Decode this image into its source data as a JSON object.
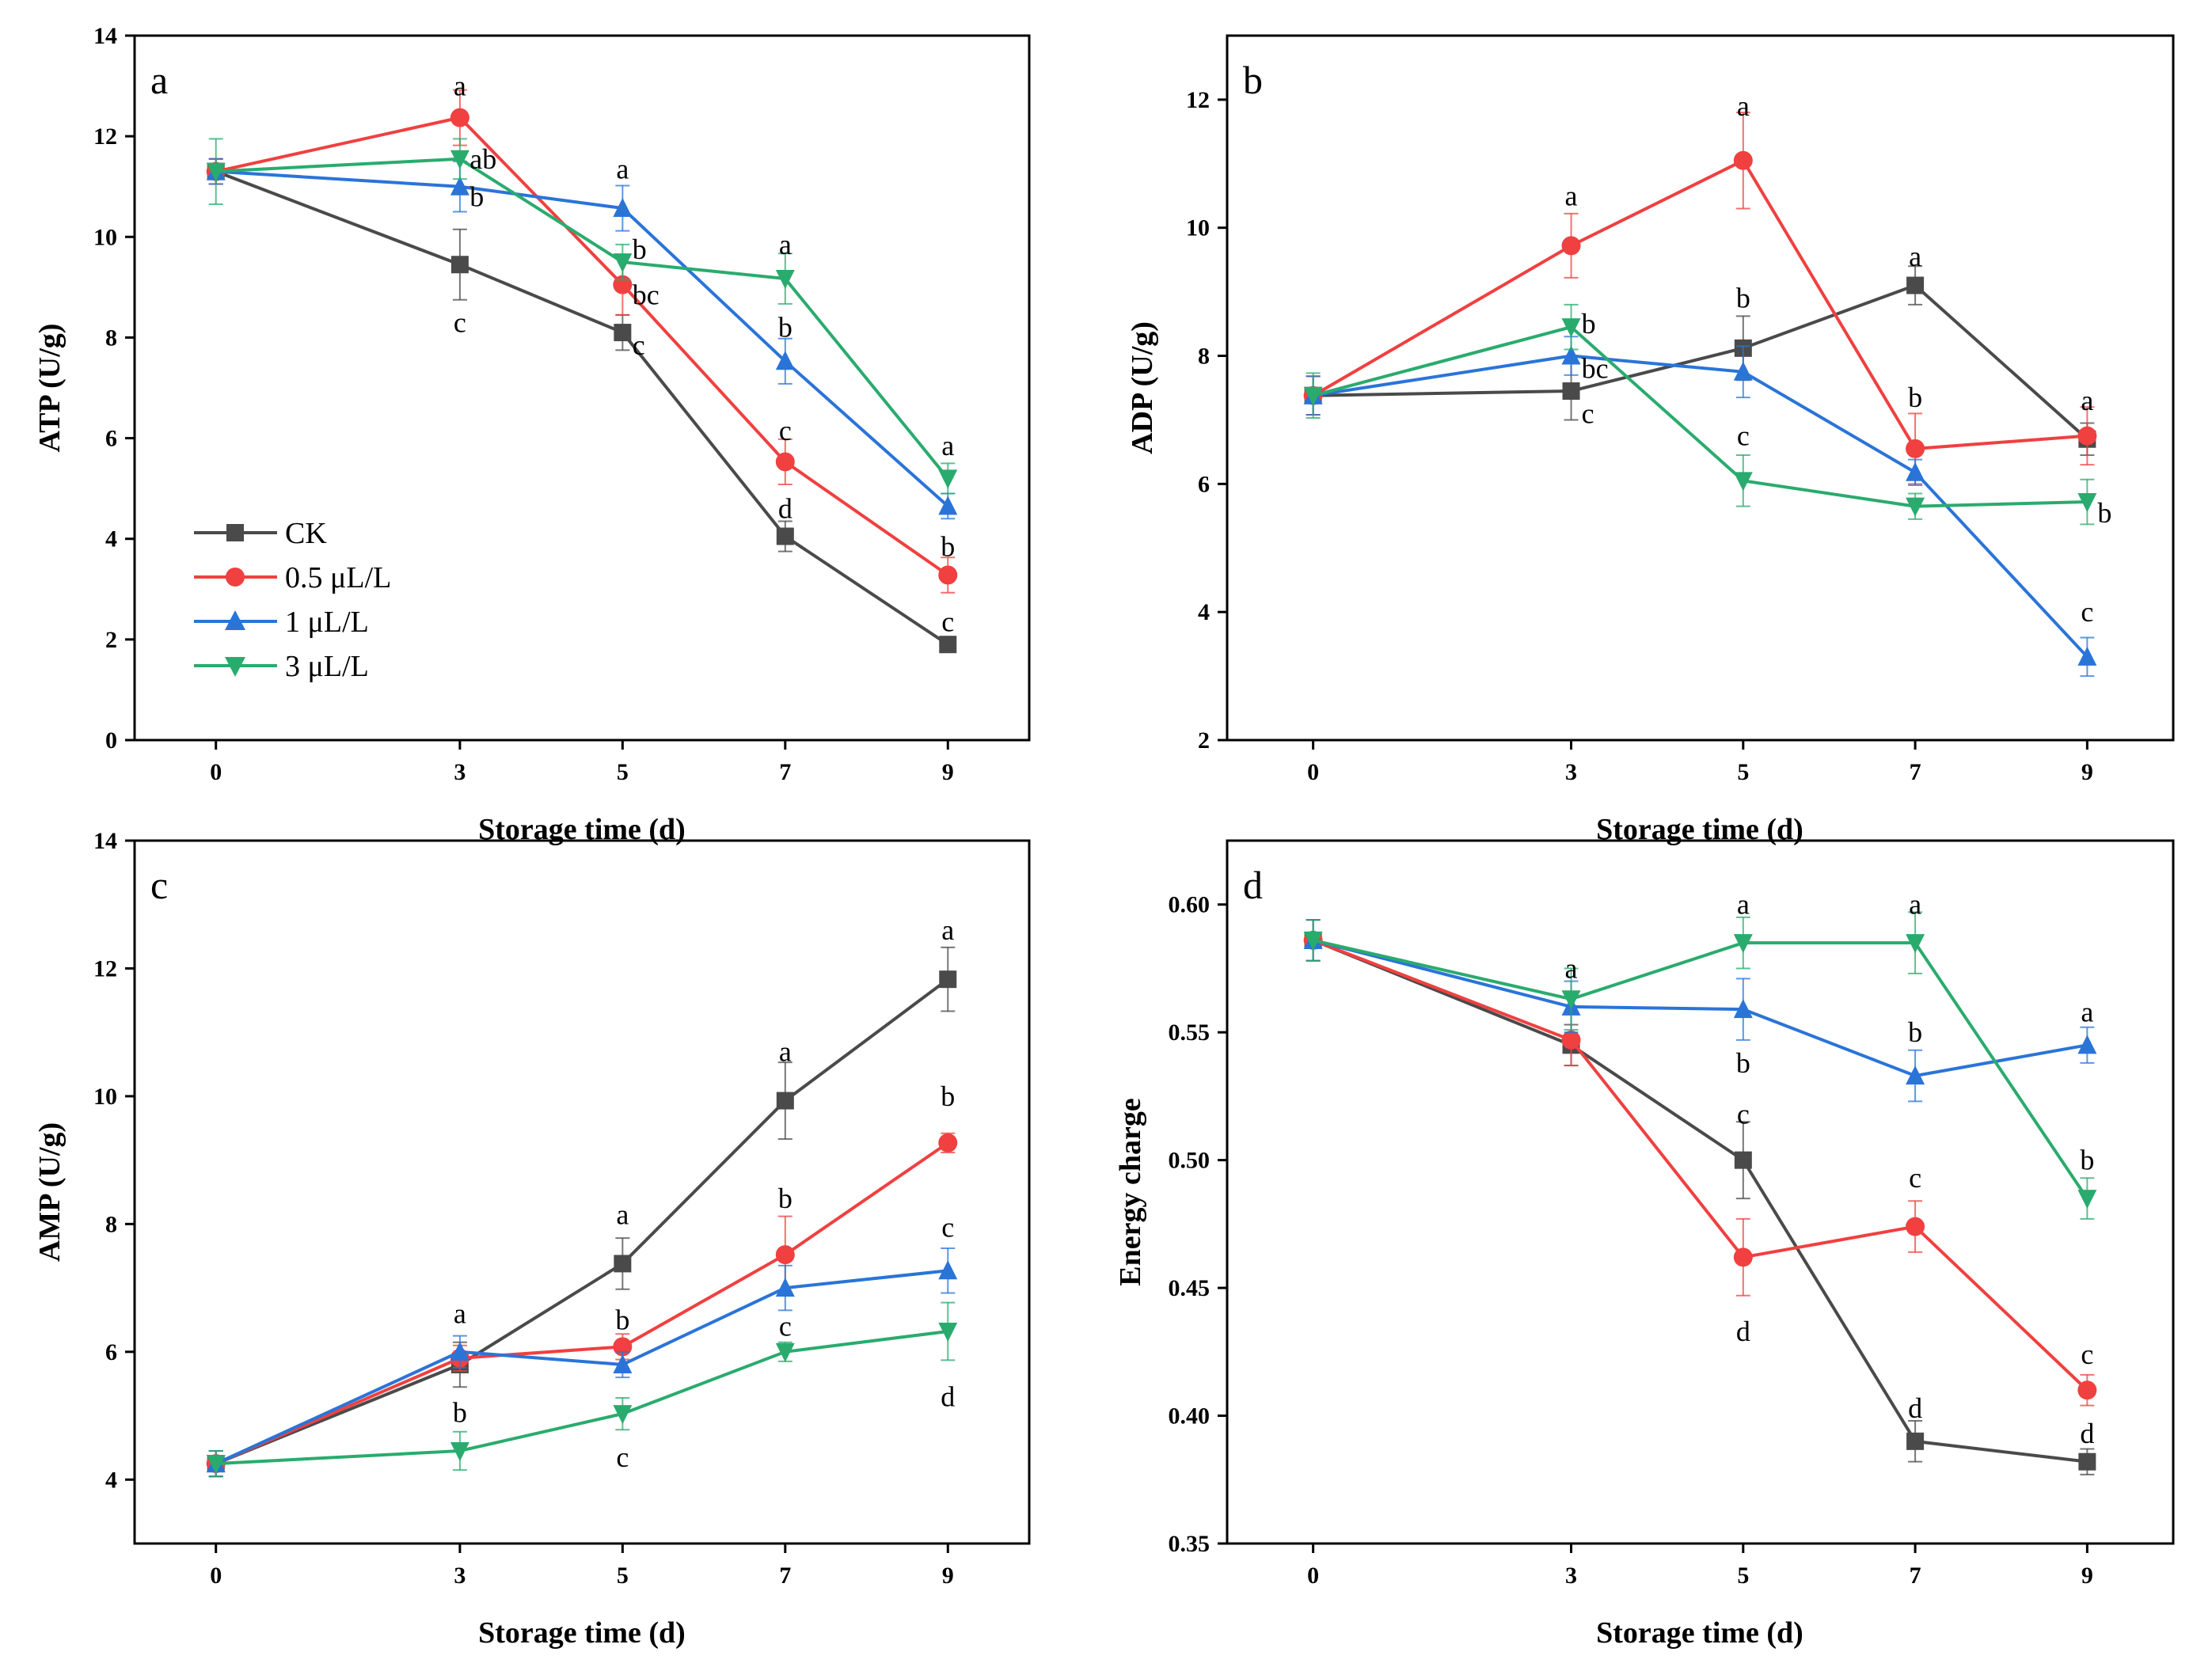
{
  "colors": {
    "CK": "#4a4a4a",
    "0.5 μL/L": "#f04040",
    "1 μL/L": "#2a74d8",
    "3 μL/L": "#2aab6e"
  },
  "legend": {
    "entries": [
      "CK",
      "0.5 μL/L",
      "1 μL/L",
      "3 μL/L"
    ],
    "position": "lower-left of panel a"
  },
  "chart_data": [
    {
      "type": "line",
      "panel": "a",
      "xlabel": "Storage time (d)",
      "ylabel": "ATP (U/g)",
      "x": [
        0,
        3,
        5,
        7,
        9
      ],
      "xlim": [
        -1,
        10
      ],
      "ylim": [
        0,
        14
      ],
      "yticks": [
        0,
        2,
        4,
        6,
        8,
        10,
        12,
        14
      ],
      "series": [
        {
          "name": "CK",
          "marker": "square",
          "values": [
            11.3,
            9.45,
            8.1,
            4.05,
            1.9
          ],
          "errors": [
            0.25,
            0.7,
            0.35,
            0.3,
            0.12
          ]
        },
        {
          "name": "0.5 μL/L",
          "marker": "circle",
          "values": [
            11.3,
            12.37,
            9.05,
            5.53,
            3.28
          ],
          "errors": [
            0.25,
            0.55,
            0.6,
            0.45,
            0.35
          ]
        },
        {
          "name": "1 μL/L",
          "marker": "triangle-up",
          "values": [
            11.3,
            11.0,
            10.57,
            7.53,
            4.65
          ],
          "errors": [
            0.25,
            0.5,
            0.45,
            0.45,
            0.25
          ]
        },
        {
          "name": "3 μL/L",
          "marker": "triangle-down",
          "values": [
            11.3,
            11.55,
            9.5,
            9.17,
            5.2
          ],
          "errors": [
            0.65,
            0.4,
            0.35,
            0.5,
            0.3
          ]
        }
      ],
      "annotations": [
        {
          "text": "a",
          "x": 3,
          "y": 13.0,
          "anchor": "middle"
        },
        {
          "text": "ab",
          "x": 3.12,
          "y": 11.55,
          "anchor": "start"
        },
        {
          "text": "b",
          "x": 3.12,
          "y": 10.8,
          "anchor": "start"
        },
        {
          "text": "c",
          "x": 3,
          "y": 8.3,
          "anchor": "middle"
        },
        {
          "text": "a",
          "x": 5,
          "y": 11.35,
          "anchor": "middle"
        },
        {
          "text": "b",
          "x": 5.12,
          "y": 9.75,
          "anchor": "start"
        },
        {
          "text": "bc",
          "x": 5.12,
          "y": 8.85,
          "anchor": "start"
        },
        {
          "text": "c",
          "x": 5.12,
          "y": 7.85,
          "anchor": "start"
        },
        {
          "text": "a",
          "x": 7,
          "y": 9.85,
          "anchor": "middle"
        },
        {
          "text": "b",
          "x": 7,
          "y": 8.2,
          "anchor": "middle"
        },
        {
          "text": "c",
          "x": 7,
          "y": 6.15,
          "anchor": "middle"
        },
        {
          "text": "d",
          "x": 7,
          "y": 4.6,
          "anchor": "middle"
        },
        {
          "text": "a",
          "x": 9,
          "y": 5.85,
          "anchor": "middle"
        },
        {
          "text": "b",
          "x": 9,
          "y": 3.85,
          "anchor": "middle"
        },
        {
          "text": "c",
          "x": 9,
          "y": 2.35,
          "anchor": "middle"
        }
      ]
    },
    {
      "type": "line",
      "panel": "b",
      "xlabel": "Storage time (d)",
      "ylabel": "ADP (U/g)",
      "x": [
        0,
        3,
        5,
        7,
        9
      ],
      "xlim": [
        -1,
        10
      ],
      "ylim": [
        2,
        13
      ],
      "yticks": [
        2,
        4,
        6,
        8,
        10,
        12
      ],
      "series": [
        {
          "name": "CK",
          "marker": "square",
          "values": [
            7.38,
            7.45,
            8.12,
            9.1,
            6.7
          ],
          "errors": [
            0.3,
            0.45,
            0.5,
            0.3,
            0.25
          ]
        },
        {
          "name": "0.5 μL/L",
          "marker": "circle",
          "values": [
            7.38,
            9.72,
            11.05,
            6.55,
            6.75
          ],
          "errors": [
            0.3,
            0.5,
            0.75,
            0.55,
            0.45
          ]
        },
        {
          "name": "1 μL/L",
          "marker": "triangle-up",
          "values": [
            7.38,
            8.0,
            7.75,
            6.18,
            3.3
          ],
          "errors": [
            0.3,
            0.3,
            0.4,
            0.2,
            0.3
          ]
        },
        {
          "name": "3 μL/L",
          "marker": "triangle-down",
          "values": [
            7.38,
            8.45,
            6.05,
            5.65,
            5.72
          ],
          "errors": [
            0.35,
            0.35,
            0.4,
            0.2,
            0.35
          ]
        }
      ],
      "annotations": [
        {
          "text": "a",
          "x": 3,
          "y": 10.5,
          "anchor": "middle"
        },
        {
          "text": "b",
          "x": 3.12,
          "y": 8.5,
          "anchor": "start"
        },
        {
          "text": "bc",
          "x": 3.12,
          "y": 7.8,
          "anchor": "start"
        },
        {
          "text": "c",
          "x": 3.12,
          "y": 7.1,
          "anchor": "start"
        },
        {
          "text": "a",
          "x": 5,
          "y": 11.9,
          "anchor": "middle"
        },
        {
          "text": "b",
          "x": 5,
          "y": 8.9,
          "anchor": "middle"
        },
        {
          "text": "c",
          "x": 5,
          "y": 6.75,
          "anchor": "middle"
        },
        {
          "text": "a",
          "x": 7,
          "y": 9.55,
          "anchor": "middle"
        },
        {
          "text": "b",
          "x": 7,
          "y": 7.35,
          "anchor": "middle"
        },
        {
          "text": "a",
          "x": 9,
          "y": 7.3,
          "anchor": "middle"
        },
        {
          "text": "b",
          "x": 9.12,
          "y": 5.55,
          "anchor": "start"
        },
        {
          "text": "c",
          "x": 9,
          "y": 4.0,
          "anchor": "middle"
        }
      ]
    },
    {
      "type": "line",
      "panel": "c",
      "xlabel": "Storage time (d)",
      "ylabel": "AMP (U/g)",
      "x": [
        0,
        3,
        5,
        7,
        9
      ],
      "xlim": [
        -1,
        10
      ],
      "ylim": [
        3,
        14
      ],
      "yticks": [
        4,
        6,
        8,
        10,
        12,
        14
      ],
      "series": [
        {
          "name": "CK",
          "marker": "square",
          "values": [
            4.25,
            5.8,
            7.38,
            9.93,
            11.83
          ],
          "errors": [
            0.2,
            0.35,
            0.4,
            0.6,
            0.5
          ]
        },
        {
          "name": "0.5 μL/L",
          "marker": "circle",
          "values": [
            4.25,
            5.9,
            6.08,
            7.52,
            9.27
          ],
          "errors": [
            0.2,
            0.2,
            0.2,
            0.6,
            0.15
          ]
        },
        {
          "name": "1 μL/L",
          "marker": "triangle-up",
          "values": [
            4.25,
            6.0,
            5.8,
            7.0,
            7.27
          ],
          "errors": [
            0.2,
            0.25,
            0.2,
            0.35,
            0.35
          ]
        },
        {
          "name": "3 μL/L",
          "marker": "triangle-down",
          "values": [
            4.25,
            4.45,
            5.03,
            6.0,
            6.32
          ],
          "errors": [
            0.2,
            0.3,
            0.25,
            0.15,
            0.45
          ]
        }
      ],
      "annotations": [
        {
          "text": "a",
          "x": 3,
          "y": 6.6,
          "anchor": "middle"
        },
        {
          "text": "b",
          "x": 3,
          "y": 5.05,
          "anchor": "middle"
        },
        {
          "text": "a",
          "x": 5,
          "y": 8.15,
          "anchor": "middle"
        },
        {
          "text": "b",
          "x": 5,
          "y": 6.5,
          "anchor": "middle"
        },
        {
          "text": "c",
          "x": 5,
          "y": 4.35,
          "anchor": "middle"
        },
        {
          "text": "a",
          "x": 7,
          "y": 10.7,
          "anchor": "middle"
        },
        {
          "text": "b",
          "x": 7,
          "y": 8.4,
          "anchor": "middle"
        },
        {
          "text": "c",
          "x": 7,
          "y": 6.4,
          "anchor": "middle"
        },
        {
          "text": "a",
          "x": 9,
          "y": 12.6,
          "anchor": "middle"
        },
        {
          "text": "b",
          "x": 9,
          "y": 10.0,
          "anchor": "middle"
        },
        {
          "text": "c",
          "x": 9,
          "y": 7.95,
          "anchor": "middle"
        },
        {
          "text": "d",
          "x": 9,
          "y": 5.3,
          "anchor": "middle"
        }
      ]
    },
    {
      "type": "line",
      "panel": "d",
      "xlabel": "Storage time (d)",
      "ylabel": "Energy charge",
      "x": [
        0,
        3,
        5,
        7,
        9
      ],
      "xlim": [
        -1,
        10
      ],
      "ylim": [
        0.35,
        0.625
      ],
      "yticks": [
        0.35,
        0.4,
        0.45,
        0.5,
        0.55,
        0.6
      ],
      "ytick_labels": [
        "0.35",
        "0.40",
        "0.45",
        "0.50",
        "0.55",
        "0.60"
      ],
      "series": [
        {
          "name": "CK",
          "marker": "square",
          "values": [
            0.586,
            0.545,
            0.5,
            0.39,
            0.382
          ],
          "errors": [
            0.008,
            0.008,
            0.015,
            0.008,
            0.005
          ]
        },
        {
          "name": "0.5 μL/L",
          "marker": "circle",
          "values": [
            0.586,
            0.547,
            0.462,
            0.474,
            0.41
          ],
          "errors": [
            0.008,
            0.01,
            0.015,
            0.01,
            0.006
          ]
        },
        {
          "name": "1 μL/L",
          "marker": "triangle-up",
          "values": [
            0.586,
            0.56,
            0.559,
            0.533,
            0.545
          ],
          "errors": [
            0.008,
            0.01,
            0.012,
            0.01,
            0.007
          ]
        },
        {
          "name": "3 μL/L",
          "marker": "triangle-down",
          "values": [
            0.586,
            0.563,
            0.585,
            0.585,
            0.485
          ],
          "errors": [
            0.008,
            0.012,
            0.01,
            0.012,
            0.008
          ]
        }
      ],
      "annotations": [
        {
          "text": "a",
          "x": 3,
          "y": 0.575,
          "anchor": "middle"
        },
        {
          "text": "a",
          "x": 5,
          "y": 0.6,
          "anchor": "middle"
        },
        {
          "text": "b",
          "x": 5,
          "y": 0.538,
          "anchor": "middle"
        },
        {
          "text": "c",
          "x": 5,
          "y": 0.518,
          "anchor": "middle"
        },
        {
          "text": "d",
          "x": 5,
          "y": 0.433,
          "anchor": "middle"
        },
        {
          "text": "a",
          "x": 7,
          "y": 0.6,
          "anchor": "middle"
        },
        {
          "text": "b",
          "x": 7,
          "y": 0.55,
          "anchor": "middle"
        },
        {
          "text": "c",
          "x": 7,
          "y": 0.493,
          "anchor": "middle"
        },
        {
          "text": "d",
          "x": 7,
          "y": 0.403,
          "anchor": "middle"
        },
        {
          "text": "a",
          "x": 9,
          "y": 0.558,
          "anchor": "middle"
        },
        {
          "text": "b",
          "x": 9,
          "y": 0.5,
          "anchor": "middle"
        },
        {
          "text": "c",
          "x": 9,
          "y": 0.424,
          "anchor": "middle"
        },
        {
          "text": "d",
          "x": 9,
          "y": 0.393,
          "anchor": "middle"
        }
      ]
    }
  ]
}
